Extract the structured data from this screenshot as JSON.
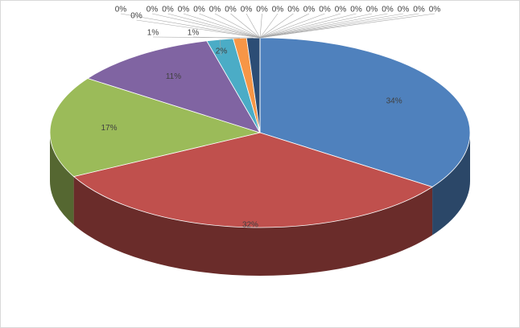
{
  "chart_data": {
    "type": "pie3d",
    "values": [
      34,
      32,
      17,
      11,
      2,
      1,
      1,
      0,
      0,
      0,
      0,
      0,
      0,
      0,
      0,
      0,
      0,
      0,
      0,
      0,
      0,
      0,
      0,
      0,
      0,
      0,
      0,
      0
    ],
    "value_labels": [
      "34%",
      "32%",
      "17%",
      "11%",
      "2%",
      "1%",
      "1%",
      "0%",
      "0%",
      "0%",
      "0%",
      "0%",
      "0%",
      "0%",
      "0%",
      "0%",
      "0%",
      "0%",
      "0%",
      "0%",
      "0%",
      "0%",
      "0%",
      "0%",
      "0%",
      "0%",
      "0%",
      "0%"
    ],
    "colors": [
      "#4f81bd",
      "#c0504d",
      "#9bbb59",
      "#8064a2",
      "#4bacc6",
      "#f79646",
      "#2c4d75",
      "#772c2a",
      "#5f7530",
      "#4d3b62",
      "#276a7c",
      "#b65708",
      "#729aca",
      "#cd7371",
      "#afc97a",
      "#9983b5",
      "#6fbdd1",
      "#f9ab6b",
      "#3a6599",
      "#9c3f3d",
      "#7e9945",
      "#664f84",
      "#3c8aa0",
      "#d07520",
      "#95b3d7",
      "#d99694",
      "#c3d69b",
      "#b2a2c7"
    ]
  }
}
